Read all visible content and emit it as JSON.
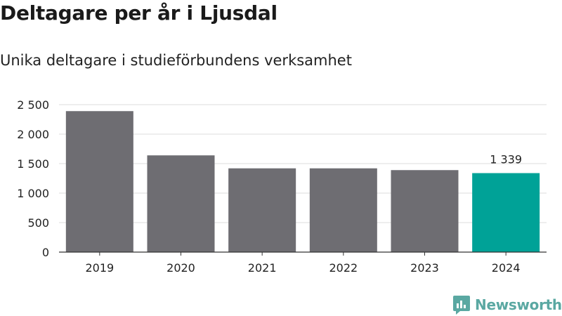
{
  "title": "Deltagare per år i Ljusdal",
  "subtitle": "Unika deltagare i studieförbundens verksamhet",
  "brand": {
    "name": "Newsworthy",
    "icon": "newsworthy-logo-icon"
  },
  "colors": {
    "bar": "#6e6d72",
    "highlight": "#00a297",
    "grid": "#dddddd",
    "axis": "#333333",
    "brand": "#5aa8a2"
  },
  "chart_data": {
    "type": "bar",
    "categories": [
      "2019",
      "2020",
      "2021",
      "2022",
      "2023",
      "2024"
    ],
    "values": [
      2390,
      1640,
      1420,
      1420,
      1390,
      1339
    ],
    "highlight_index": 5,
    "data_labels": [
      {
        "index": 5,
        "text": "1 339"
      }
    ],
    "yticks": [
      0,
      500,
      1000,
      1500,
      2000,
      2500
    ],
    "ytick_labels": [
      "0",
      "500",
      "1 000",
      "1 500",
      "2 000",
      "2 500"
    ],
    "ylim": [
      0,
      2500
    ],
    "grid": true,
    "legend": "none",
    "xlabel": "",
    "ylabel": ""
  }
}
